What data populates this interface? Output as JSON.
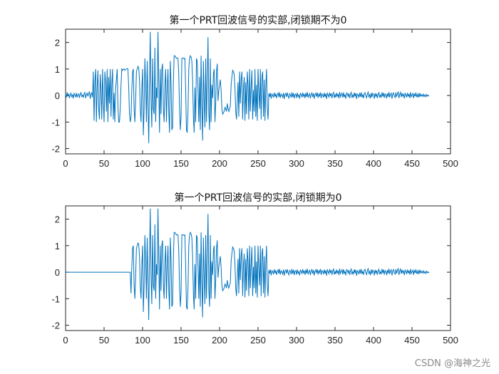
{
  "watermark": "CSDN @海神之光",
  "chart_data": [
    {
      "type": "line",
      "title": "第一个PRT回波信号的实部,闭锁期不为0",
      "xlim": [
        0,
        500
      ],
      "ylim": [
        -2.2,
        2.5
      ],
      "xticks": [
        "0",
        "50",
        "100",
        "150",
        "200",
        "250",
        "300",
        "350",
        "400",
        "450",
        "500"
      ],
      "yticks": [
        "2",
        "1",
        "0",
        "-1",
        "-2"
      ],
      "grid": false,
      "color": "#0072BD",
      "x_start": 0,
      "x_step": 1,
      "values": [
        0.05,
        -0.08,
        0.12,
        -0.03,
        0.07,
        -0.1,
        0.02,
        0.09,
        -0.06,
        0.04,
        -0.11,
        0.08,
        0.01,
        -0.05,
        0.1,
        -0.07,
        0.03,
        0.06,
        -0.09,
        0.05,
        0.11,
        -0.04,
        0.02,
        -0.08,
        0.07,
        0.12,
        -0.1,
        0.04,
        0.09,
        -0.03,
        0.08,
        0.15,
        -0.12,
        0.05,
        0.1,
        -0.07,
        0.9,
        -0.95,
        0.5,
        1.0,
        -1.0,
        0.3,
        0.95,
        -0.5,
        -0.9,
        0.8,
        0.2,
        -0.9,
        1.0,
        -0.2,
        -1.0,
        0.9,
        0.5,
        -0.6,
        1.0,
        -1.0,
        0.7,
        -0.3,
        1.0,
        -0.8,
        0.4,
        1.0,
        -0.9,
        0.1,
        -1.0,
        0.3,
        0.6,
        1.0,
        -0.4,
        -1.0,
        -1.0,
        -0.5,
        0.4,
        1.0,
        0.95,
        1.0,
        1.0,
        0.95,
        0.98,
        1.0,
        1.02,
        1.0,
        0.3,
        -0.7,
        -1.0,
        -0.8,
        0.2,
        0.9,
        1.0,
        -0.5,
        -1.0,
        -0.2,
        0.9,
        1.0,
        1.1,
        1.05,
        0.6,
        -0.5,
        -1.0,
        0.2,
        1.0,
        -1.5,
        -0.5,
        1.4,
        0.4,
        -1.0,
        1.3,
        -0.3,
        -1.8,
        0.6,
        2.4,
        -0.2,
        -1.2,
        1.4,
        -0.5,
        -0.7,
        1.8,
        -1.0,
        0.3,
        -0.1,
        2.4,
        0.5,
        -1.4,
        1.0,
        -0.7,
        1.0,
        1.2,
        -0.5,
        -1.0,
        0.4,
        1.0,
        -1.0,
        0.2,
        1.0,
        -0.6,
        -1.4,
        1.3,
        0.5,
        -1.3,
        -1.2,
        0.5,
        1.5,
        1.5,
        1.45,
        1.4,
        1.42,
        1.4,
        0.8,
        -0.5,
        -1.3,
        -0.8,
        1.4,
        1.42,
        1.4,
        1.38,
        1.4,
        0.2,
        -1.3,
        -1.4,
        -0.6,
        1.0,
        1.4,
        1.5,
        1.45,
        1.3,
        0.6,
        -0.8,
        -1.4,
        0.3,
        -1.0,
        1.4,
        1.3,
        0.2,
        -1.0,
        0.7,
        -1.3,
        1.5,
        -0.4,
        -1.7,
        1.3,
        -0.2,
        -1.2,
        1.4,
        -1.0,
        0.5,
        2.2,
        -0.6,
        -1.3,
        1.4,
        -1.0,
        0.4,
        -0.1,
        0.8,
        1.0,
        -1.0,
        -0.3,
        0.9,
        1.2,
        -0.2,
        0.2,
        0.4,
        0.6,
        0.2,
        -0.5,
        -0.7,
        -0.65,
        -0.6,
        -0.45,
        -0.5,
        -0.6,
        -0.3,
        -0.5,
        -0.6,
        -0.5,
        -0.4,
        0.4,
        0.7,
        0.95,
        0.9,
        0.8,
        0.3,
        -0.6,
        -0.9,
        -0.2,
        0.5,
        -0.8,
        0.9,
        -0.3,
        0.6,
        0.9,
        -0.9,
        0.2,
        0.7,
        -0.95,
        0.5,
        -0.7,
        0.9,
        0.4,
        -0.9,
        1.0,
        -0.6,
        0.3,
        0.95,
        -0.9,
        0.2,
        -0.6,
        1.0,
        -0.8,
        0.4,
        -0.95,
        1.0,
        0.1,
        -0.5,
        1.0,
        -0.9,
        0.7,
        0.9,
        -0.8,
        0.6,
        -0.95,
        0.3,
        1.0,
        -0.5,
        -0.9,
        0.08,
        -0.05,
        0.1,
        -0.12,
        0.06,
        0.02,
        -0.08,
        0.11,
        -0.04,
        0.07,
        -0.1,
        0.03,
        0.09,
        -0.06,
        0.12,
        -0.09,
        0.05,
        0.01,
        -0.07,
        0.1,
        -0.13,
        0.04,
        0.08,
        -0.05,
        0.11,
        -0.02,
        -0.1,
        0.07,
        0.03,
        -0.08,
        0.12,
        -0.06,
        0.09,
        -0.11,
        0.04,
        0.06,
        -0.09,
        0.1,
        -0.04,
        0.02,
        -0.12,
        0.08,
        0.05,
        -0.07,
        0.11,
        -0.03,
        0.06,
        -0.1,
        0.09,
        -0.05,
        0.13,
        -0.08,
        0.02,
        0.07,
        -0.11,
        0.04,
        0.1,
        -0.06,
        0.08,
        -0.12,
        0.03,
        0.09,
        -0.04,
        0.11,
        -0.09,
        0.05,
        -0.02,
        0.12,
        -0.1,
        0.06,
        0.04,
        -0.08,
        0.1,
        -0.05,
        0.07,
        -0.13,
        0.09,
        0.02,
        -0.06,
        0.11,
        -0.03,
        0.08,
        -0.1,
        0.05,
        0.12,
        -0.09,
        0.03,
        -0.07,
        0.1,
        -0.04,
        0.06,
        -0.11,
        0.13,
        -0.05,
        0.02,
        0.09,
        -0.08,
        0.11,
        -0.06,
        0.04,
        -0.12,
        0.1,
        0.07,
        -0.03,
        0.08,
        -0.1,
        0.05,
        0.12,
        -0.09,
        0.02,
        -0.06,
        0.11,
        -0.04,
        0.09,
        -0.13,
        0.06,
        0.03,
        -0.08,
        0.1,
        -0.05,
        0.12,
        -0.07,
        0.04,
        -0.1,
        0.08,
        0.11,
        -0.02,
        -0.09,
        0.06,
        0.13,
        -0.05,
        0.03,
        -0.11,
        0.1,
        -0.06,
        0.08,
        0.04,
        -0.12,
        0.09,
        -0.03,
        0.07,
        -0.1,
        0.05,
        0.11,
        -0.08,
        0.02,
        -0.06,
        0.12,
        -0.04,
        0.1,
        -0.09,
        0.06,
        0.03,
        -0.11,
        0.08,
        -0.05,
        0.13,
        -0.07,
        0.04,
        0.09,
        -0.12,
        0.06,
        0.1,
        -0.03,
        -0.08,
        0.11,
        -0.05,
        0.07,
        0.15,
        -0.1,
        0.04,
        0.12,
        -0.06,
        0.09,
        -0.02,
        0.05,
        -0.11,
        0.08,
        0.03,
        -0.07,
        0.1,
        -0.04,
        0.06,
        -0.09,
        0.12,
        -0.05,
        0.02,
        0.08,
        -0.1,
        0.07,
        -0.03,
        0.11,
        -0.06,
        0.04,
        -0.08,
        0.09,
        -0.05,
        0.06,
        -0.02,
        0.03,
        -0.04,
        0.05,
        -0.03,
        0.02,
        -0.05,
        0.04,
        -0.02,
        0.01,
        -0.03
      ]
    },
    {
      "type": "line",
      "title": "第一个PRT回波信号的实部,闭锁期为0",
      "xlim": [
        0,
        500
      ],
      "ylim": [
        -2.2,
        2.5
      ],
      "xticks": [
        "0",
        "50",
        "100",
        "150",
        "200",
        "250",
        "300",
        "350",
        "400",
        "450",
        "500"
      ],
      "yticks": [
        "2",
        "1",
        "0",
        "-1",
        "-2"
      ],
      "grid": false,
      "color": "#0072BD",
      "zero_until_x": 85,
      "x_start": 0,
      "x_step": 1,
      "values": "same_as_first_after_blanking"
    }
  ]
}
